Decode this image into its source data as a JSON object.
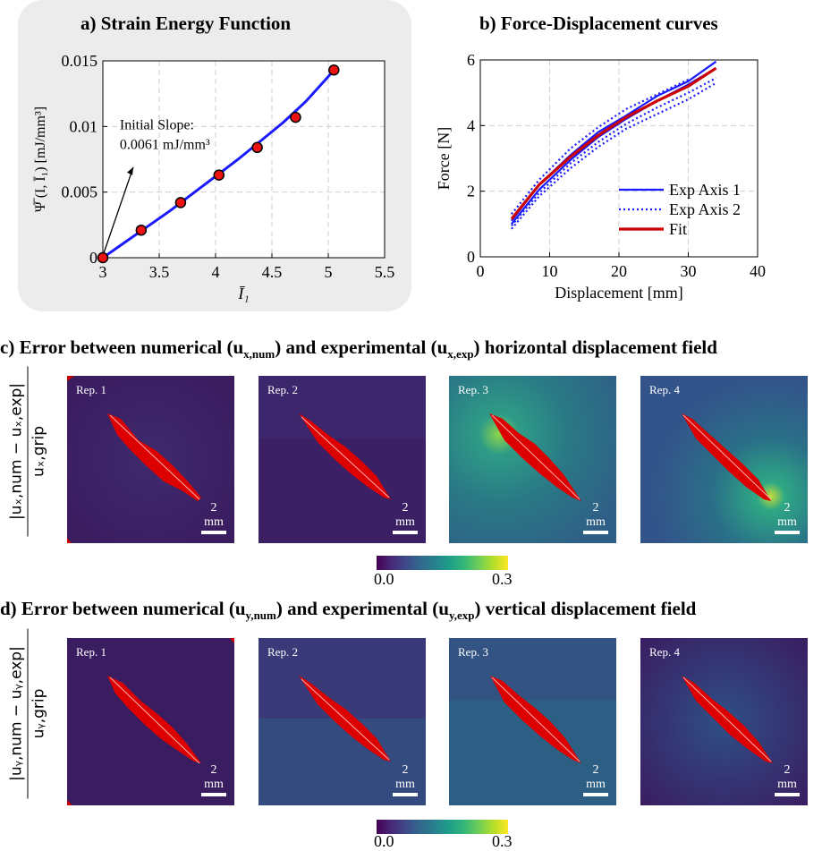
{
  "panel_a": {
    "title": "a) Strain Energy Function"
  },
  "panel_b": {
    "title": "b) Force-Displacement curves"
  },
  "panel_c": {
    "title_parts": [
      "c) Error between numerical (u",
      "x,num",
      ") and experimental (u",
      "x,exp",
      ") horizontal displacement field"
    ],
    "ylabel_num": "|uₓ,num − uₓ,exp|",
    "ylabel_den": "uₓ,grip",
    "reps": [
      "Rep. 1",
      "Rep. 2",
      "Rep. 3",
      "Rep. 4"
    ],
    "scale_label": "2 mm",
    "colorbar": {
      "min_label": "0.0",
      "max_label": "0.3"
    }
  },
  "panel_d": {
    "title_parts": [
      "d) Error between numerical (u",
      "y,num",
      ") and experimental (u",
      "y,exp",
      ") vertical displacement field"
    ],
    "ylabel_num": "|uᵧ,num − uᵧ,exp|",
    "ylabel_den": "uᵧ,grip",
    "reps": [
      "Rep. 1",
      "Rep. 2",
      "Rep. 3",
      "Rep. 4"
    ],
    "scale_label": "2 mm",
    "colorbar": {
      "min_label": "0.0",
      "max_label": "0.3"
    }
  },
  "colors": {
    "blue": "#1a1aff",
    "red": "#cc0000",
    "map_dark": "#3b1a5c",
    "map_teal": "#2c6f7a"
  },
  "chart_data": [
    {
      "type": "line",
      "title": "a) Strain Energy Function",
      "xlabel": "Ī₁",
      "ylabel": "Ψ̅ (I, Ī₁) [mJ/mm³]",
      "xlim": [
        3,
        5.5
      ],
      "ylim": [
        0,
        0.015
      ],
      "xticks": [
        "3",
        "3.5",
        "4",
        "4.5",
        "5",
        "5.5"
      ],
      "yticks": [
        "0",
        "0.005",
        "0.01",
        "0.015"
      ],
      "grid": true,
      "annotation": {
        "line1": "Initial Slope:",
        "line2": "0.0061 mJ/mm³"
      },
      "curve": {
        "x": [
          3,
          3.2,
          3.4,
          3.6,
          3.8,
          4.0,
          4.2,
          4.4,
          4.6,
          4.8,
          5.0,
          5.05
        ],
        "y": [
          0,
          0.0012,
          0.0024,
          0.0036,
          0.0049,
          0.0062,
          0.0075,
          0.0089,
          0.0103,
          0.0119,
          0.0138,
          0.0143
        ]
      },
      "points": {
        "x": [
          3.0,
          3.34,
          3.69,
          4.03,
          4.37,
          4.71,
          5.05
        ],
        "y": [
          0.0,
          0.0021,
          0.0042,
          0.0063,
          0.0084,
          0.0107,
          0.0143
        ]
      }
    },
    {
      "type": "line",
      "title": "b) Force-Displacement curves",
      "xlabel": "Displacement [mm]",
      "ylabel": "Force [N]",
      "xlim": [
        0,
        40
      ],
      "ylim": [
        0,
        6
      ],
      "xticks": [
        "0",
        "10",
        "20",
        "30",
        "40"
      ],
      "yticks": [
        "0",
        "2",
        "4",
        "6"
      ],
      "grid": true,
      "legend_position": "bottom-right",
      "series": [
        {
          "name": "Exp Axis 1",
          "style": "solid",
          "color": "#1a1aff",
          "lines": [
            {
              "x": [
                4.5,
                8.5,
                13,
                17,
                21,
                25.5,
                30,
                34
              ],
              "y": [
                1.1,
                2.2,
                3.1,
                3.8,
                4.3,
                4.9,
                5.35,
                5.95
              ]
            },
            {
              "x": [
                4.5,
                8.5,
                13,
                17,
                21,
                25.5,
                30,
                34
              ],
              "y": [
                1.0,
                2.05,
                2.95,
                3.65,
                4.2,
                4.75,
                5.25,
                5.75
              ]
            }
          ]
        },
        {
          "name": "Exp Axis 2",
          "style": "dotted",
          "color": "#1a1aff",
          "lines": [
            {
              "x": [
                4.5,
                8.5,
                13,
                17,
                21,
                25.5,
                30,
                34
              ],
              "y": [
                0.85,
                1.85,
                2.7,
                3.35,
                3.9,
                4.35,
                4.8,
                5.3
              ]
            },
            {
              "x": [
                4.5,
                8.5,
                13,
                17,
                21,
                25.5,
                30
              ],
              "y": [
                1.3,
                2.35,
                3.3,
                3.95,
                4.5,
                4.95,
                5.4
              ]
            },
            {
              "x": [
                4.5,
                8.5,
                13,
                17,
                21,
                25.5,
                30,
                34
              ],
              "y": [
                0.95,
                1.95,
                2.85,
                3.5,
                4.05,
                4.55,
                5.0,
                5.45
              ]
            }
          ]
        },
        {
          "name": "Fit",
          "style": "solid",
          "color": "#cc0000",
          "lines": [
            {
              "x": [
                4.5,
                8.5,
                13,
                17,
                21,
                25.5,
                30,
                34
              ],
              "y": [
                1.15,
                2.2,
                3.05,
                3.7,
                4.25,
                4.75,
                5.2,
                5.75
              ]
            }
          ]
        }
      ]
    }
  ]
}
